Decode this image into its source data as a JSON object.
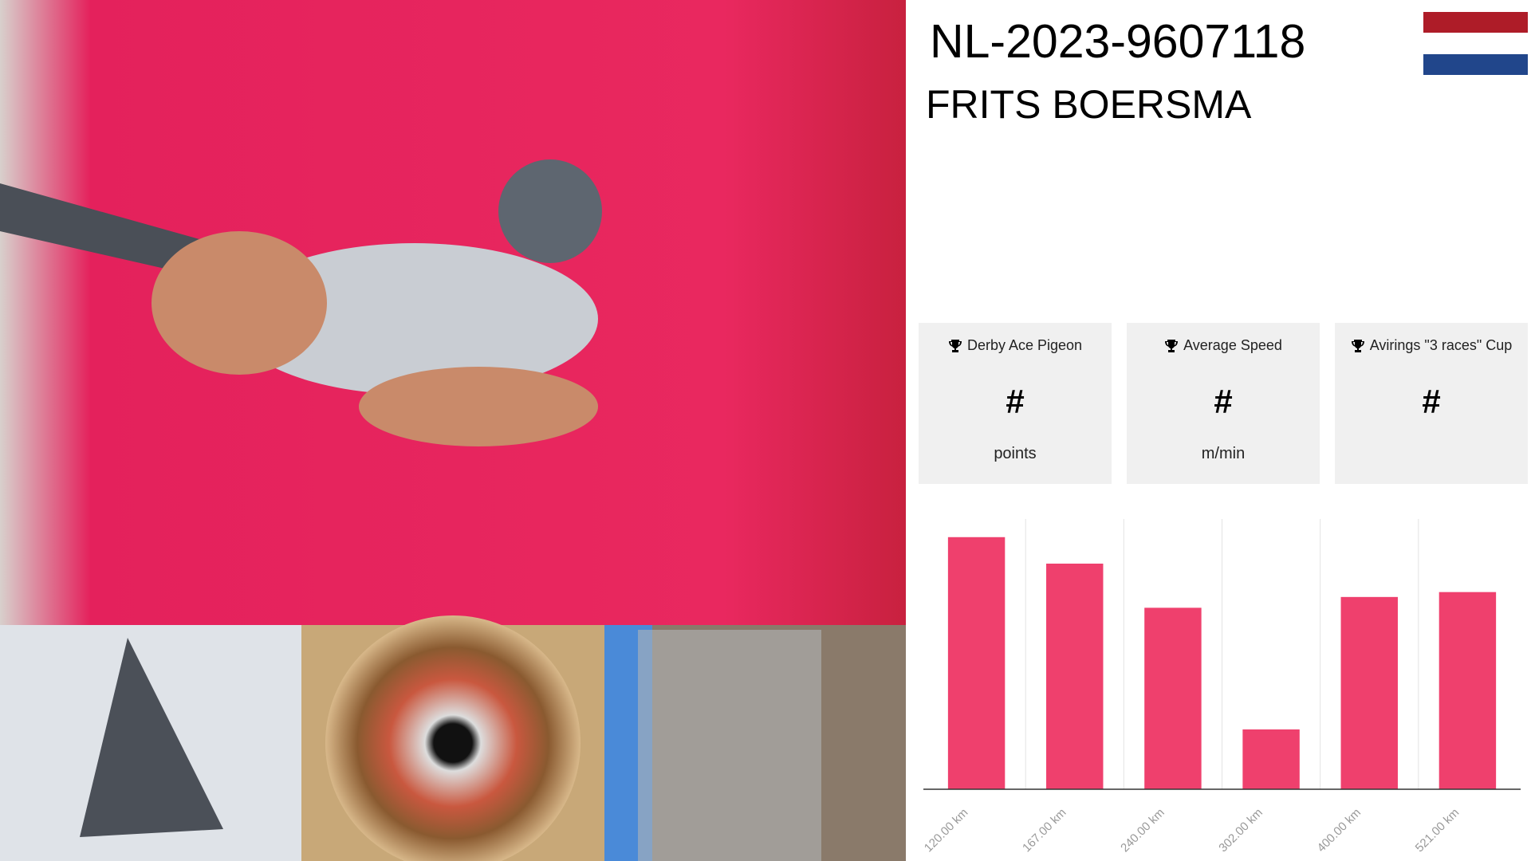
{
  "header": {
    "ring": "NL-2023-9607118",
    "name": "FRITS BOERSMA"
  },
  "stats": [
    {
      "title": "Derby Ace Pigeon",
      "value": "#",
      "unit": "points"
    },
    {
      "title": "Average Speed",
      "value": "#",
      "unit": "m/min"
    },
    {
      "title": "Avirings \"3 races\" Cup",
      "value": "#"
    }
  ],
  "chart_data": {
    "type": "bar",
    "categories": [
      "120.00 km",
      "167.00 km",
      "240.00 km",
      "302.00 km",
      "400.00 km",
      "521.00 km"
    ],
    "values": [
      257,
      230,
      185,
      61,
      196,
      201
    ],
    "color": "#ef406d",
    "ylim": [
      0,
      269
    ]
  }
}
